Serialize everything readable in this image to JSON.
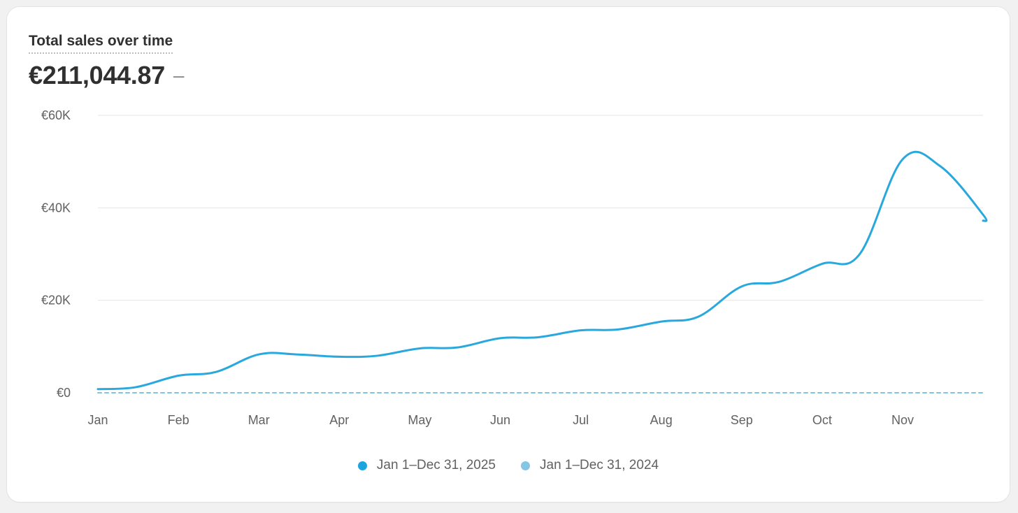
{
  "card": {
    "title": "Total sales over time",
    "total": "€211,044.87",
    "change": "–"
  },
  "chart_data": {
    "type": "line",
    "title": "Total sales over time",
    "x_ticks": [
      "Jan",
      "Feb",
      "Mar",
      "Apr",
      "May",
      "Jun",
      "Jul",
      "Aug",
      "Sep",
      "Oct",
      "Nov"
    ],
    "y_ticks": [
      "€60K",
      "€40K",
      "€20K",
      "€0"
    ],
    "ylim": [
      0,
      60000
    ],
    "grid": true,
    "legend_position": "bottom",
    "series": [
      {
        "name": "Jan 1–Dec 31, 2025",
        "color": "#29a8dd",
        "style": "solid",
        "points": [
          {
            "x": "Jan 1",
            "y": 800
          },
          {
            "x": "Jan 15",
            "y": 1200
          },
          {
            "x": "Feb 1",
            "y": 3700
          },
          {
            "x": "Feb 15",
            "y": 4500
          },
          {
            "x": "Mar 1",
            "y": 8300
          },
          {
            "x": "Mar 15",
            "y": 8300
          },
          {
            "x": "Apr 1",
            "y": 7800
          },
          {
            "x": "Apr 15",
            "y": 8000
          },
          {
            "x": "May 1",
            "y": 9600
          },
          {
            "x": "May 15",
            "y": 9800
          },
          {
            "x": "Jun 1",
            "y": 11800
          },
          {
            "x": "Jun 15",
            "y": 12000
          },
          {
            "x": "Jul 1",
            "y": 13500
          },
          {
            "x": "Jul 15",
            "y": 13700
          },
          {
            "x": "Aug 1",
            "y": 15400
          },
          {
            "x": "Aug 15",
            "y": 16500
          },
          {
            "x": "Sep 1",
            "y": 23000
          },
          {
            "x": "Sep 15",
            "y": 24000
          },
          {
            "x": "Oct 1",
            "y": 27900
          },
          {
            "x": "Oct 15",
            "y": 30000
          },
          {
            "x": "Nov 1",
            "y": 50500
          },
          {
            "x": "Nov 15",
            "y": 49000
          },
          {
            "x": "Dec 1",
            "y": 38500
          },
          {
            "x": "Dec 15",
            "y": 37200
          }
        ]
      },
      {
        "name": "Jan 1–Dec 31, 2024",
        "color": "#7fc3e3",
        "style": "dashed",
        "points": [
          {
            "x": "Jan 1",
            "y": 0
          },
          {
            "x": "Dec 15",
            "y": 0
          }
        ]
      }
    ]
  }
}
